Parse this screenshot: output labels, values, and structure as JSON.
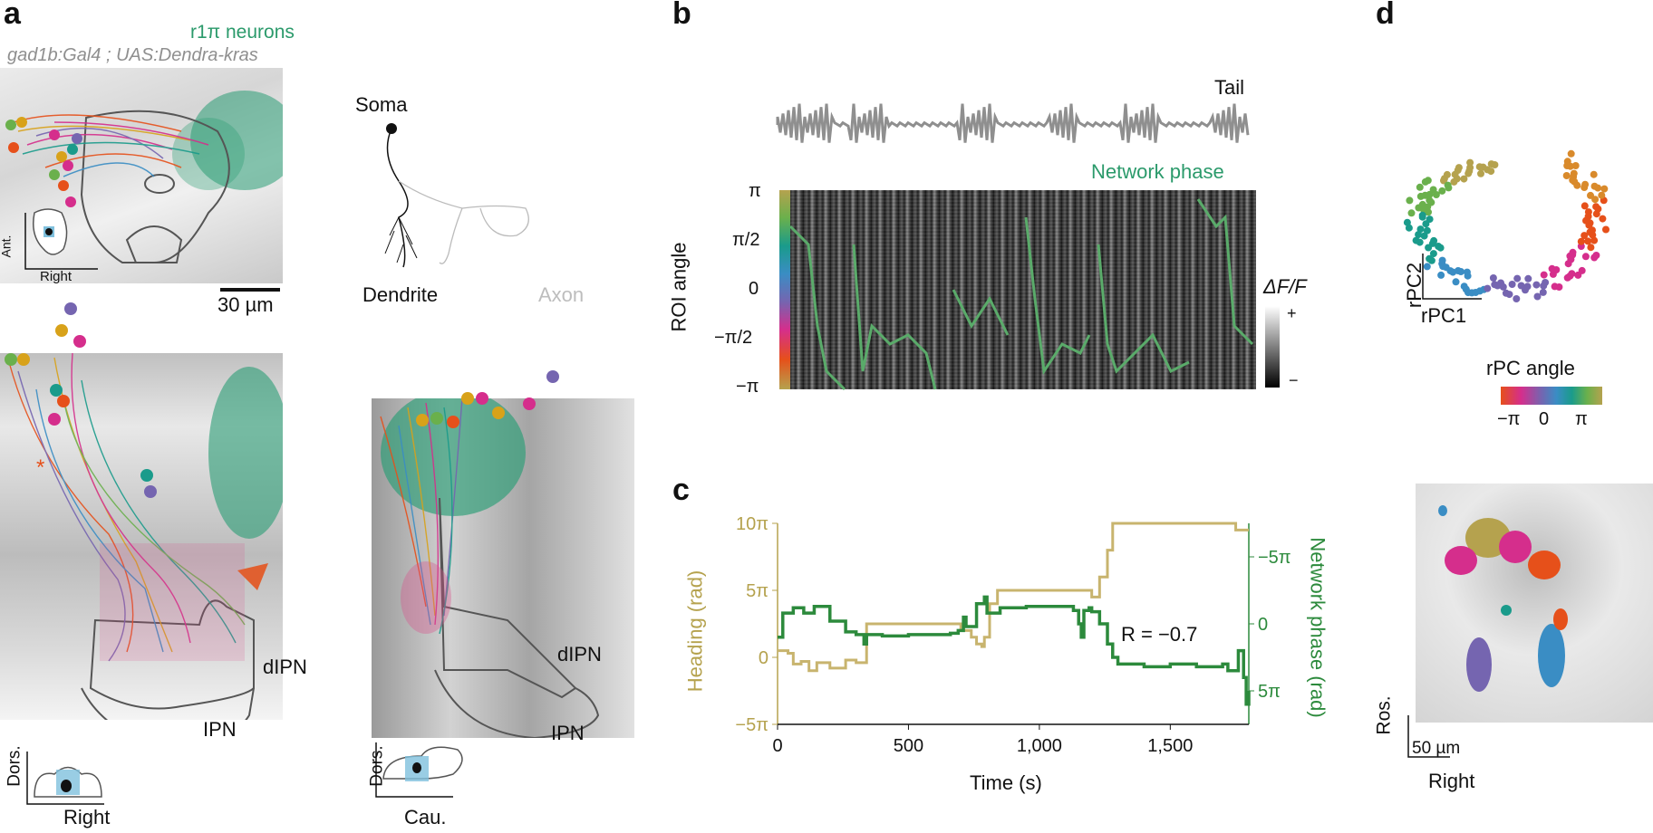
{
  "panels": {
    "a": "a",
    "b": "b",
    "c": "c",
    "d": "d"
  },
  "panel_a": {
    "title_green": "r1π neurons",
    "title_grey": "gad1b:Gal4 ; UAS:Dendra-kras",
    "inset_ant": "Ant.",
    "inset_right": "Right",
    "scale_bar": "30 µm",
    "soma": "Soma",
    "dendrite": "Dendrite",
    "axon": "Axon",
    "lower_left": {
      "dorsal": "Dors.",
      "right": "Right",
      "dipn": "dIPN",
      "ipn": "IPN",
      "star": "*"
    },
    "lower_right": {
      "dorsal": "Dors.",
      "caudal": "Cau.",
      "dipn": "dIPN",
      "ipn": "IPN"
    },
    "colors": {
      "neurons": "#2a9d74",
      "outline": "#555555",
      "arrowhead": "#e06030"
    }
  },
  "panel_b": {
    "tail_label": "Tail",
    "network_phase_label": "Network phase",
    "ylabel": "ROI angle",
    "yticks": [
      "π",
      "π/2",
      "0",
      "−π/2",
      "−π"
    ],
    "colorbar_label": "ΔF/F",
    "colorbar_plus": "+",
    "colorbar_minus": "−",
    "trace_color": "#5aab6a"
  },
  "panel_d": {
    "xlabel": "rPC1",
    "ylabel": "rPC2",
    "colorbar_title": "rPC angle",
    "colorbar_ticks": [
      "−π",
      "0",
      "π"
    ],
    "ros": "Ros.",
    "right": "Right",
    "scale_bar": "50 µm"
  },
  "chart_data": [
    {
      "type": "line",
      "panel": "c",
      "xlabel": "Time (s)",
      "ylabel": "Heading (rad)",
      "ylabel_right": "Network phase (rad)",
      "xlim": [
        0,
        1800
      ],
      "x_ticks": [
        "0",
        "500",
        "1,000",
        "1,500"
      ],
      "y_ticks_left": [
        "10π",
        "5π",
        "0",
        "−5π"
      ],
      "y_ticks_right": [
        "−5π",
        "0",
        "5π"
      ],
      "annotation": "R = −0.7",
      "series": [
        {
          "color": "#c8b46e",
          "axis": "left",
          "x": [
            0,
            40,
            60,
            90,
            120,
            150,
            200,
            260,
            300,
            340,
            500,
            660,
            700,
            740,
            760,
            780,
            790,
            810,
            840,
            1000,
            1150,
            1200,
            1230,
            1260,
            1280,
            1300,
            1400,
            1500,
            1600,
            1700,
            1750,
            1780,
            1800
          ],
          "values": [
            0.5,
            0.3,
            -0.5,
            -0.3,
            -1.0,
            -0.4,
            -0.8,
            -0.2,
            -0.4,
            2.5,
            2.5,
            2.5,
            2.0,
            1.5,
            1.0,
            0.8,
            1.5,
            4.0,
            5.0,
            5.0,
            5.0,
            4.5,
            6.0,
            8.0,
            10.0,
            10.0,
            10.0,
            10.0,
            10.0,
            10.0,
            9.5,
            9.5,
            9.5
          ]
        },
        {
          "color": "#2c8a3c",
          "axis": "right",
          "x": [
            0,
            20,
            60,
            100,
            140,
            200,
            260,
            300,
            330,
            340,
            400,
            500,
            600,
            660,
            690,
            710,
            720,
            760,
            790,
            800,
            850,
            950,
            1050,
            1130,
            1150,
            1160,
            1170,
            1190,
            1200,
            1230,
            1260,
            1280,
            1300,
            1400,
            1500,
            1600,
            1700,
            1720,
            1760,
            1780,
            1790,
            1800
          ],
          "values": [
            1.0,
            -0.8,
            -1.2,
            -0.8,
            -1.3,
            -0.2,
            0.6,
            0.8,
            1.5,
            0.8,
            0.9,
            0.8,
            0.8,
            0.7,
            0.5,
            -0.5,
            0.2,
            -1.5,
            -2.0,
            -0.8,
            -1.2,
            -1.3,
            -1.3,
            -1.0,
            0.0,
            1.0,
            -1.0,
            -1.2,
            -0.9,
            0.0,
            1.5,
            2.5,
            3.0,
            3.2,
            3.0,
            3.2,
            3.0,
            3.5,
            2.0,
            4.0,
            6.0,
            5.0
          ]
        }
      ]
    },
    {
      "type": "scatter",
      "panel": "d",
      "xlabel": "rPC1",
      "ylabel": "rPC2",
      "point_count": 160,
      "color_encoding": "rPC angle"
    }
  ]
}
